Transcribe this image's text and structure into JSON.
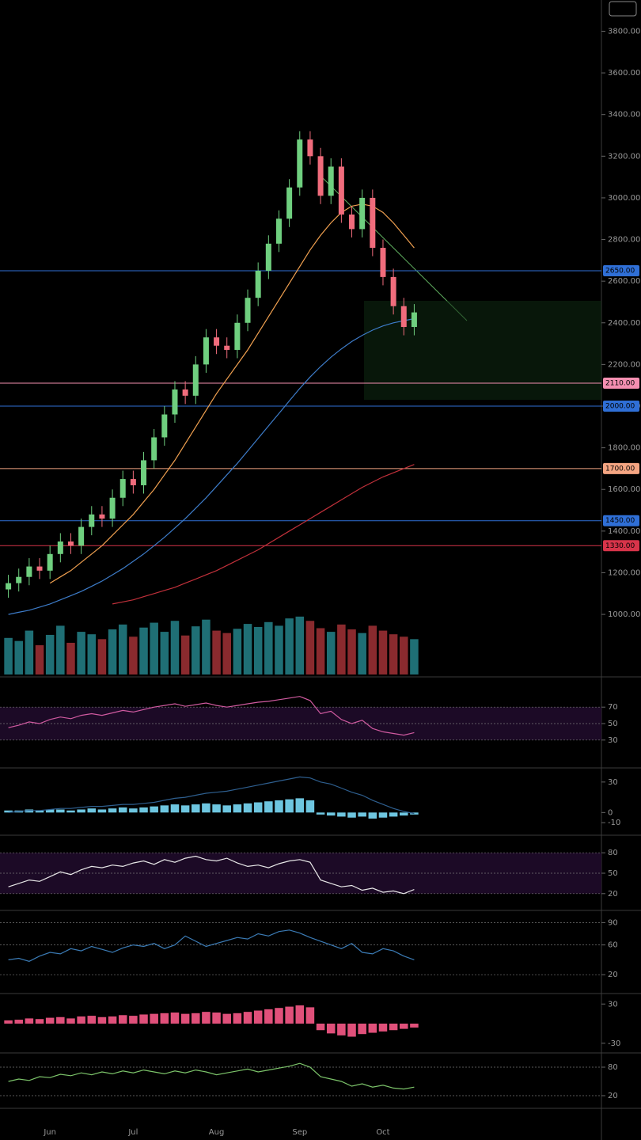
{
  "chart_data": [
    {
      "type": "candlestick",
      "x": [
        null,
        null,
        null,
        null,
        "Jun",
        null,
        null,
        null,
        null,
        null,
        null,
        null,
        "Jul",
        null,
        null,
        null,
        null,
        null,
        null,
        null,
        "Aug",
        null,
        null,
        null,
        null,
        null,
        null,
        null,
        "Sep",
        null,
        null,
        null,
        null,
        null,
        null,
        null,
        "Oct",
        null,
        null,
        null
      ],
      "open": [
        1120,
        1150,
        1180,
        1230,
        1210,
        1290,
        1350,
        1330,
        1420,
        1480,
        1460,
        1560,
        1650,
        1620,
        1740,
        1850,
        1960,
        2080,
        2050,
        2200,
        2330,
        2290,
        2270,
        2400,
        2520,
        2650,
        2780,
        2900,
        3050,
        3280,
        3200,
        3010,
        3150,
        2920,
        2850,
        3000,
        2760,
        2620,
        2480,
        2380
      ],
      "high": [
        1190,
        1220,
        1270,
        1270,
        1330,
        1390,
        1390,
        1460,
        1520,
        1520,
        1600,
        1690,
        1690,
        1780,
        1890,
        2000,
        2120,
        2120,
        2240,
        2370,
        2370,
        2330,
        2440,
        2560,
        2690,
        2820,
        2940,
        3090,
        3320,
        3320,
        3240,
        3190,
        3190,
        2960,
        3040,
        3040,
        2800,
        2660,
        2520,
        2490
      ],
      "low": [
        1080,
        1110,
        1140,
        1170,
        1170,
        1250,
        1290,
        1290,
        1380,
        1420,
        1420,
        1520,
        1580,
        1580,
        1700,
        1810,
        1920,
        2010,
        2010,
        2160,
        2250,
        2230,
        2230,
        2360,
        2480,
        2610,
        2740,
        2860,
        3010,
        3160,
        2970,
        2970,
        2880,
        2810,
        2810,
        2720,
        2580,
        2440,
        2340,
        2340
      ],
      "close": [
        1150,
        1180,
        1230,
        1210,
        1290,
        1350,
        1330,
        1420,
        1480,
        1460,
        1560,
        1650,
        1620,
        1740,
        1850,
        1960,
        2080,
        2050,
        2200,
        2330,
        2290,
        2270,
        2400,
        2520,
        2650,
        2780,
        2900,
        3050,
        3280,
        3200,
        3010,
        3150,
        2920,
        2850,
        3000,
        2760,
        2620,
        2480,
        2380,
        2450
      ],
      "up_color": "#6fcf7f",
      "down_color": "#f06c7c",
      "series": [
        {
          "color": "#f0a050",
          "values": [
            null,
            null,
            null,
            null,
            1150,
            1180,
            1210,
            1250,
            1290,
            1330,
            1380,
            1430,
            1480,
            1540,
            1600,
            1670,
            1740,
            1820,
            1900,
            1980,
            2060,
            2130,
            2200,
            2270,
            2350,
            2430,
            2510,
            2590,
            2670,
            2750,
            2820,
            2880,
            2930,
            2960,
            2970,
            2960,
            2930,
            2880,
            2820,
            2760
          ]
        },
        {
          "color": "#3d7cc9",
          "values": [
            1000,
            1010,
            1020,
            1035,
            1050,
            1070,
            1090,
            1110,
            1135,
            1160,
            1190,
            1220,
            1255,
            1290,
            1330,
            1370,
            1415,
            1460,
            1510,
            1560,
            1615,
            1670,
            1725,
            1785,
            1845,
            1905,
            1965,
            2025,
            2085,
            2140,
            2190,
            2235,
            2275,
            2310,
            2340,
            2365,
            2385,
            2400,
            2410,
            2420
          ]
        },
        {
          "color": "#c0303a",
          "values": [
            null,
            null,
            null,
            null,
            null,
            null,
            null,
            null,
            null,
            null,
            1050,
            1060,
            1070,
            1085,
            1100,
            1115,
            1130,
            1150,
            1170,
            1190,
            1210,
            1235,
            1260,
            1285,
            1310,
            1340,
            1370,
            1400,
            1430,
            1460,
            1490,
            1520,
            1550,
            1580,
            1610,
            1635,
            1660,
            1680,
            1700,
            1720
          ]
        }
      ],
      "levels": [
        {
          "value": 2650,
          "label": "2650.00",
          "color": "#2f6fd6"
        },
        {
          "value": 2110,
          "label": "2110.00",
          "color": "#f48fb1"
        },
        {
          "value": 2000,
          "label": "2000.00",
          "color": "#2f6fd6"
        },
        {
          "value": 1700,
          "label": "1700.00",
          "color": "#f4a582"
        },
        {
          "value": 1450,
          "label": "1450.00",
          "color": "#2f6fd6"
        },
        {
          "value": 1330,
          "label": "1330.00",
          "color": "#d8344a"
        }
      ],
      "ylim": [
        700,
        3950
      ],
      "yticks": [
        {
          "value": 1000,
          "label": "1000.00"
        },
        {
          "value": 1200,
          "label": "1200.00"
        },
        {
          "value": 1400,
          "label": "1400.00"
        },
        {
          "value": 1600,
          "label": "1600.00"
        },
        {
          "value": 1800,
          "label": "1800.00"
        },
        {
          "value": 2000,
          "label": "2000.00"
        },
        {
          "value": 2200,
          "label": "2200.00"
        },
        {
          "value": 2400,
          "label": "2400.00"
        },
        {
          "value": 2600,
          "label": "2600.00"
        },
        {
          "value": 2800,
          "label": "2800.00"
        },
        {
          "value": 3000,
          "label": "3000.00"
        },
        {
          "value": 3200,
          "label": "3200.00"
        },
        {
          "value": 3400,
          "label": "3400.00"
        },
        {
          "value": 3600,
          "label": "3600.00"
        },
        {
          "value": 3800,
          "label": "3800.00"
        }
      ],
      "grid": false
    },
    {
      "type": "bar",
      "values": [
        60,
        55,
        72,
        48,
        65,
        80,
        52,
        70,
        66,
        58,
        74,
        82,
        62,
        77,
        85,
        70,
        88,
        64,
        79,
        90,
        72,
        68,
        75,
        83,
        78,
        86,
        80,
        92,
        95,
        88,
        76,
        70,
        82,
        74,
        68,
        80,
        72,
        66,
        62,
        58
      ],
      "ylim": [
        0,
        100
      ],
      "yticks": [],
      "grid": false,
      "direction_colors": true,
      "color": "#2c6f78"
    },
    {
      "type": "line",
      "series": [
        {
          "color": "#d05aa0",
          "values": [
            45,
            48,
            52,
            50,
            55,
            58,
            56,
            60,
            62,
            60,
            63,
            66,
            64,
            67,
            70,
            72,
            74,
            71,
            73,
            75,
            72,
            70,
            72,
            74,
            76,
            77,
            79,
            81,
            83,
            78,
            62,
            65,
            55,
            50,
            54,
            44,
            40,
            38,
            36,
            39
          ]
        }
      ],
      "ylim": [
        0,
        100
      ],
      "yticks": [
        30,
        50,
        70
      ],
      "grid": true,
      "band": true
    },
    {
      "type": "bar",
      "values": [
        2,
        2,
        3,
        2,
        3,
        3,
        2,
        3,
        4,
        3,
        4,
        5,
        4,
        5,
        6,
        7,
        8,
        7,
        8,
        9,
        8,
        7,
        8,
        9,
        10,
        11,
        12,
        13,
        14,
        12,
        -2,
        -3,
        -4,
        -5,
        -4,
        -6,
        -5,
        -4,
        -3,
        -2
      ],
      "color": "#6ec6e0",
      "series": [
        {
          "color": "#2e5f8f",
          "values": [
            0,
            1,
            2,
            2,
            3,
            4,
            4,
            5,
            6,
            6,
            7,
            8,
            8,
            9,
            10,
            12,
            14,
            15,
            17,
            19,
            20,
            21,
            23,
            25,
            27,
            29,
            31,
            33,
            35,
            34,
            30,
            28,
            24,
            20,
            17,
            12,
            8,
            4,
            1,
            -1
          ]
        }
      ],
      "ylim": [
        -20,
        40
      ],
      "yticks": [
        -10,
        0,
        30
      ],
      "grid": false
    },
    {
      "type": "line",
      "series": [
        {
          "color": "#e8e8e8",
          "values": [
            30,
            35,
            40,
            38,
            45,
            52,
            48,
            55,
            60,
            58,
            62,
            60,
            65,
            68,
            63,
            70,
            66,
            72,
            75,
            70,
            68,
            72,
            65,
            60,
            62,
            58,
            64,
            68,
            70,
            66,
            40,
            35,
            30,
            32,
            25,
            28,
            22,
            24,
            20,
            26
          ]
        }
      ],
      "ylim": [
        0,
        100
      ],
      "yticks": [
        20,
        50,
        80
      ],
      "grid": true,
      "band": true
    },
    {
      "type": "line",
      "series": [
        {
          "color": "#3b7bb5",
          "values": [
            40,
            42,
            38,
            45,
            50,
            48,
            55,
            52,
            58,
            54,
            50,
            56,
            60,
            58,
            62,
            55,
            60,
            72,
            65,
            58,
            62,
            66,
            70,
            68,
            75,
            72,
            78,
            80,
            76,
            70,
            65,
            60,
            55,
            62,
            50,
            48,
            55,
            52,
            45,
            40
          ]
        }
      ],
      "ylim": [
        0,
        100
      ],
      "yticks": [
        20,
        60,
        90
      ],
      "grid": true
    },
    {
      "type": "bar",
      "values": [
        5,
        6,
        8,
        7,
        9,
        10,
        8,
        11,
        12,
        10,
        11,
        13,
        12,
        14,
        15,
        16,
        17,
        15,
        16,
        18,
        17,
        15,
        16,
        18,
        20,
        22,
        24,
        26,
        28,
        25,
        -10,
        -15,
        -18,
        -20,
        -16,
        -14,
        -12,
        -10,
        -8,
        -6
      ],
      "color": "#e0507a",
      "ylim": [
        -40,
        40
      ],
      "yticks": [
        -30,
        30
      ],
      "grid": false
    },
    {
      "type": "line",
      "series": [
        {
          "color": "#7cc46a",
          "values": [
            50,
            55,
            52,
            60,
            58,
            65,
            62,
            68,
            64,
            70,
            66,
            72,
            68,
            74,
            70,
            66,
            72,
            68,
            74,
            70,
            64,
            68,
            72,
            76,
            70,
            74,
            78,
            82,
            88,
            80,
            60,
            55,
            50,
            40,
            45,
            38,
            42,
            36,
            34,
            38
          ]
        }
      ],
      "ylim": [
        0,
        100
      ],
      "yticks": [
        20,
        80
      ],
      "grid": true
    }
  ]
}
